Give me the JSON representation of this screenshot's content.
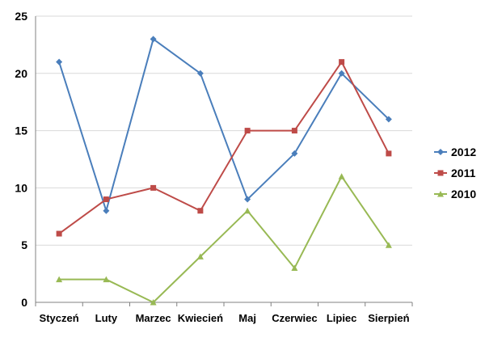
{
  "chart_data": {
    "type": "line",
    "categories": [
      "Styczeń",
      "Luty",
      "Marzec",
      "Kwiecień",
      "Maj",
      "Czerwiec",
      "Lipiec",
      "Sierpień"
    ],
    "series": [
      {
        "name": "2012",
        "color": "#4a7ebb",
        "marker": "diamond",
        "values": [
          21,
          8,
          23,
          20,
          9,
          13,
          20,
          16
        ]
      },
      {
        "name": "2011",
        "color": "#be4b48",
        "marker": "square",
        "values": [
          6,
          9,
          10,
          8,
          15,
          15,
          21,
          13
        ]
      },
      {
        "name": "2010",
        "color": "#98b954",
        "marker": "triangle",
        "values": [
          2,
          2,
          0,
          4,
          8,
          3,
          11,
          5
        ]
      }
    ],
    "yticks": [
      "0",
      "5",
      "10",
      "15",
      "20",
      "25"
    ],
    "ylim": [
      0,
      25
    ],
    "grid": true,
    "legend": "right"
  }
}
